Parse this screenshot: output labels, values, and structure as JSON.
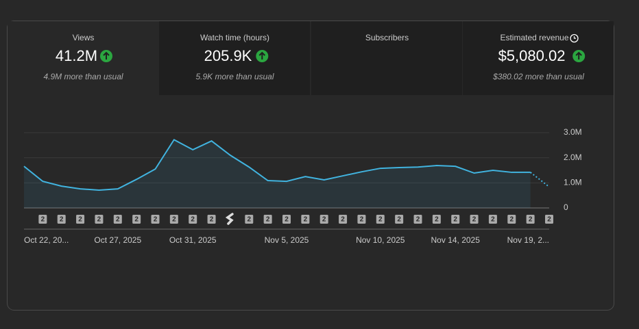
{
  "metrics": [
    {
      "title": "Views",
      "value": "41.2M",
      "note": "4.9M more than usual",
      "trend": "up"
    },
    {
      "title": "Watch time (hours)",
      "value": "205.9K",
      "note": "5.9K more than usual",
      "trend": "up"
    },
    {
      "title": "Subscribers"
    },
    {
      "title": "Estimated revenue",
      "value": "$5,080.02",
      "note": "$380.02 more than usual",
      "trend": "up"
    }
  ],
  "chart_data": {
    "type": "line",
    "color": "#41b4e0",
    "grid": true,
    "last_point_partial": true,
    "categories": [
      "Oct 22, 20...",
      null,
      null,
      null,
      null,
      "Oct 27, 2025",
      null,
      null,
      null,
      "Oct 31, 2025",
      null,
      null,
      null,
      null,
      "Nov 5, 2025",
      null,
      null,
      null,
      null,
      "Nov 10, 2025",
      null,
      null,
      null,
      "Nov 14, 2025",
      null,
      null,
      null,
      null,
      "Nov 19, 2..."
    ],
    "values": [
      1660000,
      1060000,
      870000,
      760000,
      710000,
      760000,
      1140000,
      1550000,
      2720000,
      2320000,
      2670000,
      2100000,
      1630000,
      1090000,
      1060000,
      1250000,
      1120000,
      1280000,
      1440000,
      1580000,
      1610000,
      1630000,
      1690000,
      1660000,
      1390000,
      1500000,
      1420000,
      1420000,
      840000
    ],
    "ylim": [
      0,
      3000000
    ],
    "yticks": [
      0,
      {
        "value": 1000000,
        "label": "1.0M"
      },
      {
        "value": 2000000,
        "label": "2.0M"
      },
      {
        "value": 3000000,
        "label": "3.0M"
      }
    ],
    "video_markers": [
      "2",
      "2",
      "2",
      "2",
      "2",
      "2",
      "2",
      "2",
      "2",
      "2",
      null,
      "2",
      "2",
      "2",
      "2",
      "2",
      "2",
      "2",
      "2",
      "2",
      "2",
      "2",
      "2",
      "2",
      "2",
      "2",
      "2",
      "2"
    ]
  }
}
